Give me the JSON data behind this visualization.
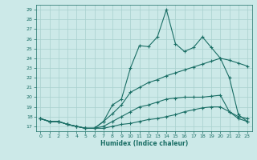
{
  "xlabel": "Humidex (Indice chaleur)",
  "background_color": "#cce9e8",
  "grid_color": "#a8d0ce",
  "line_color": "#1a6e65",
  "xlim": [
    -0.5,
    23.5
  ],
  "ylim": [
    16.5,
    29.5
  ],
  "xticks": [
    0,
    1,
    2,
    3,
    4,
    5,
    6,
    7,
    8,
    9,
    10,
    11,
    12,
    13,
    14,
    15,
    16,
    17,
    18,
    19,
    20,
    21,
    22,
    23
  ],
  "yticks": [
    17,
    18,
    19,
    20,
    21,
    22,
    23,
    24,
    25,
    26,
    27,
    28,
    29
  ],
  "line1_x": [
    0,
    1,
    2,
    3,
    4,
    5,
    6,
    7,
    8,
    9,
    10,
    11,
    12,
    13,
    14,
    15,
    16,
    17,
    18,
    19,
    20,
    21,
    22,
    23
  ],
  "line1_y": [
    17.8,
    17.5,
    17.5,
    17.2,
    17.0,
    16.8,
    16.8,
    16.8,
    17.0,
    17.2,
    17.3,
    17.5,
    17.7,
    17.8,
    18.0,
    18.2,
    18.5,
    18.7,
    18.9,
    19.0,
    19.0,
    18.5,
    17.8,
    17.5
  ],
  "line2_x": [
    0,
    1,
    2,
    3,
    4,
    5,
    6,
    7,
    8,
    9,
    10,
    11,
    12,
    13,
    14,
    15,
    16,
    17,
    18,
    19,
    20,
    21,
    22,
    23
  ],
  "line2_y": [
    17.8,
    17.5,
    17.5,
    17.2,
    17.0,
    16.8,
    16.8,
    17.5,
    19.2,
    19.8,
    23.0,
    25.3,
    25.2,
    26.2,
    29.0,
    25.5,
    24.7,
    25.1,
    26.2,
    25.1,
    24.0,
    22.0,
    18.2,
    17.5
  ],
  "line3_x": [
    0,
    1,
    2,
    3,
    4,
    5,
    6,
    7,
    8,
    9,
    10,
    11,
    12,
    13,
    14,
    15,
    16,
    17,
    18,
    19,
    20,
    21,
    22,
    23
  ],
  "line3_y": [
    17.8,
    17.5,
    17.5,
    17.2,
    17.0,
    16.8,
    16.8,
    17.5,
    18.3,
    19.2,
    20.5,
    21.0,
    21.5,
    21.8,
    22.2,
    22.5,
    22.8,
    23.1,
    23.4,
    23.7,
    24.0,
    23.8,
    23.5,
    23.2
  ],
  "line4_x": [
    0,
    1,
    2,
    3,
    4,
    5,
    6,
    7,
    8,
    9,
    10,
    11,
    12,
    13,
    14,
    15,
    16,
    17,
    18,
    19,
    20,
    21,
    22,
    23
  ],
  "line4_y": [
    17.8,
    17.5,
    17.5,
    17.2,
    17.0,
    16.8,
    16.8,
    17.0,
    17.5,
    18.0,
    18.5,
    19.0,
    19.2,
    19.5,
    19.8,
    19.9,
    20.0,
    20.0,
    20.0,
    20.1,
    20.2,
    18.5,
    18.0,
    17.8
  ]
}
